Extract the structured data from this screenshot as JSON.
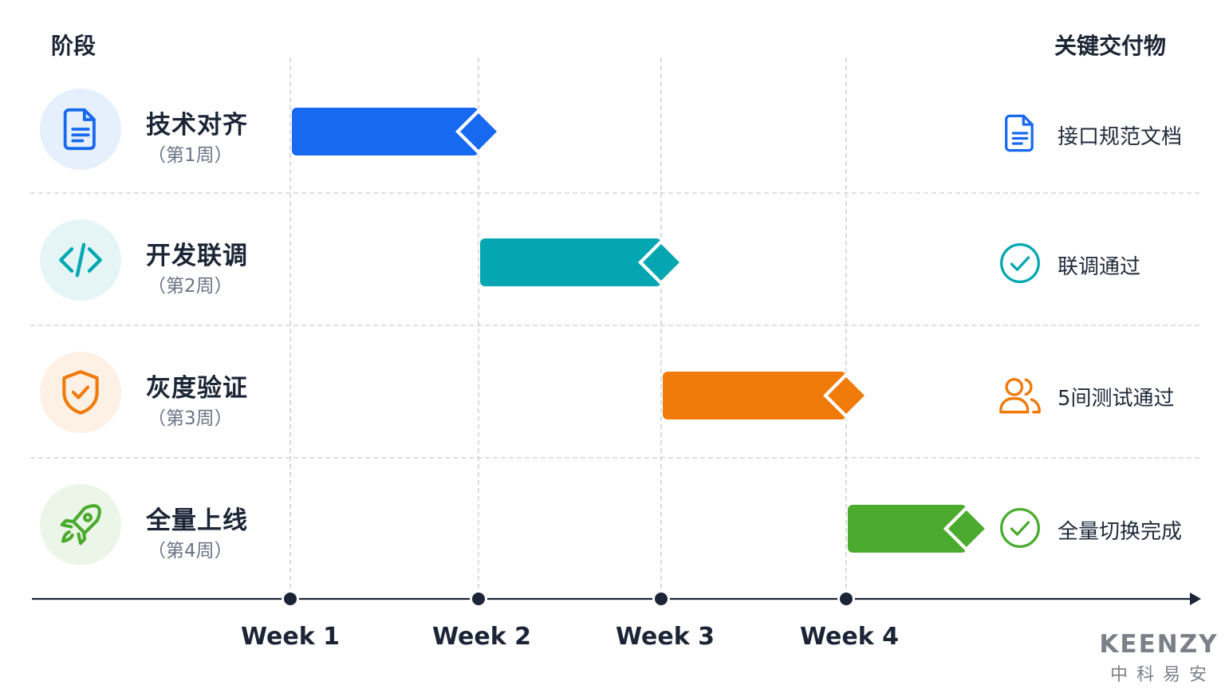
{
  "headers": {
    "phase": "阶段",
    "deliverable": "关键交付物"
  },
  "weeks": [
    "Week 1",
    "Week 2",
    "Week 3",
    "Week 4"
  ],
  "phases": [
    {
      "name": "技术对齐",
      "week": "（第1周）",
      "color": "#1769f0",
      "icon": "document-icon",
      "icon_bg": "#e6f0fc",
      "start_week": 0,
      "end_week": 1,
      "deliverable": {
        "label": "接口规范文档",
        "icon": "document-icon",
        "color": "#1769f0"
      }
    },
    {
      "name": "开发联调",
      "week": "（第2周）",
      "color": "#04a7b1",
      "icon": "code-icon",
      "icon_bg": "#e5f5f6",
      "start_week": 1,
      "end_week": 2,
      "deliverable": {
        "label": "联调通过",
        "icon": "check-circle-icon",
        "color": "#04a7b1"
      }
    },
    {
      "name": "灰度验证",
      "week": "（第3周）",
      "color": "#f07a0a",
      "icon": "shield-check-icon",
      "icon_bg": "#fdf0e4",
      "start_week": 2,
      "end_week": 3,
      "deliverable": {
        "label": "5间测试通过",
        "icon": "users-icon",
        "color": "#f07a0a"
      }
    },
    {
      "name": "全量上线",
      "week": "（第4周）",
      "color": "#4aab2e",
      "icon": "rocket-icon",
      "icon_bg": "#ecf6e8",
      "start_week": 3,
      "end_week": 3.65,
      "deliverable": {
        "label": "全量切换完成",
        "icon": "check-circle-icon",
        "color": "#4aab2e"
      }
    }
  ],
  "logo": {
    "brand": "KEENZY",
    "sub": "中科易安"
  }
}
